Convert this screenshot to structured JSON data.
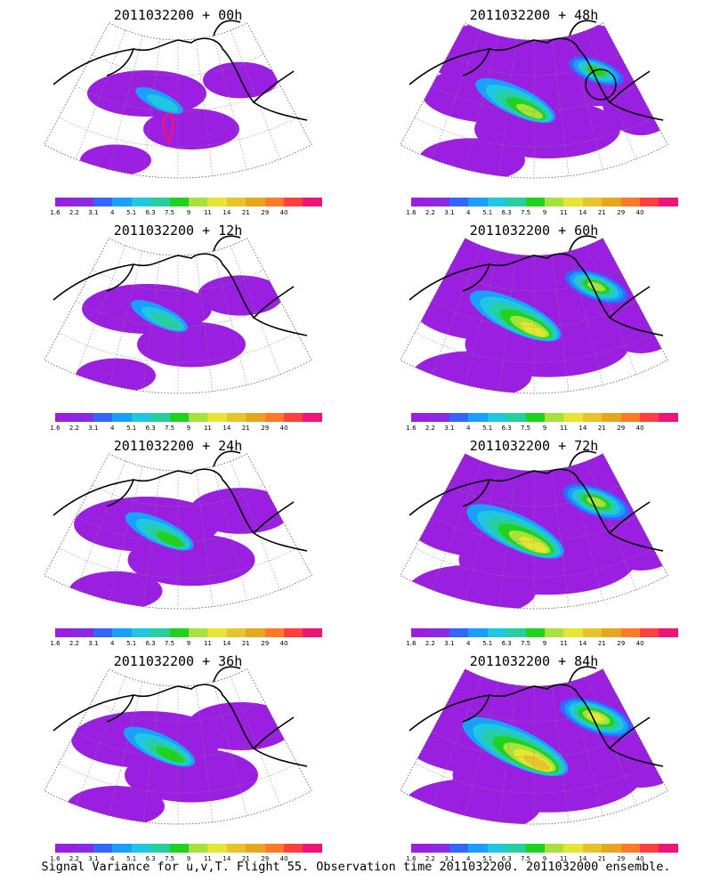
{
  "panels": [
    {
      "title": "2011032200 + 00h",
      "intensity": 0.2,
      "has_marker": true
    },
    {
      "title": "2011032200 + 48h",
      "intensity": 0.6,
      "has_circle": true
    },
    {
      "title": "2011032200 + 12h",
      "intensity": 0.3
    },
    {
      "title": "2011032200 + 60h",
      "intensity": 0.75
    },
    {
      "title": "2011032200 + 24h",
      "intensity": 0.45
    },
    {
      "title": "2011032200 + 72h",
      "intensity": 0.85
    },
    {
      "title": "2011032200 + 36h",
      "intensity": 0.5
    },
    {
      "title": "2011032200 + 84h",
      "intensity": 0.95
    }
  ],
  "colorbar": {
    "colors": [
      "#9b1fe0",
      "#8a2be2",
      "#3366ff",
      "#1a9fff",
      "#1ec8e0",
      "#27cfa0",
      "#1ed21e",
      "#a8e03c",
      "#e6e632",
      "#e6c42a",
      "#e6a61e",
      "#ff7a28",
      "#ff3f3f",
      "#f01478"
    ],
    "labels": [
      "1.6",
      "2.2",
      "3.1",
      "4",
      "5.1",
      "6.3",
      "7.5",
      "9",
      "11",
      "14",
      "21",
      "29",
      "40"
    ]
  },
  "footer": "Signal Variance for u,v,T. Flight 55. Observation time 2011032200. 2011032000 ensemble."
}
